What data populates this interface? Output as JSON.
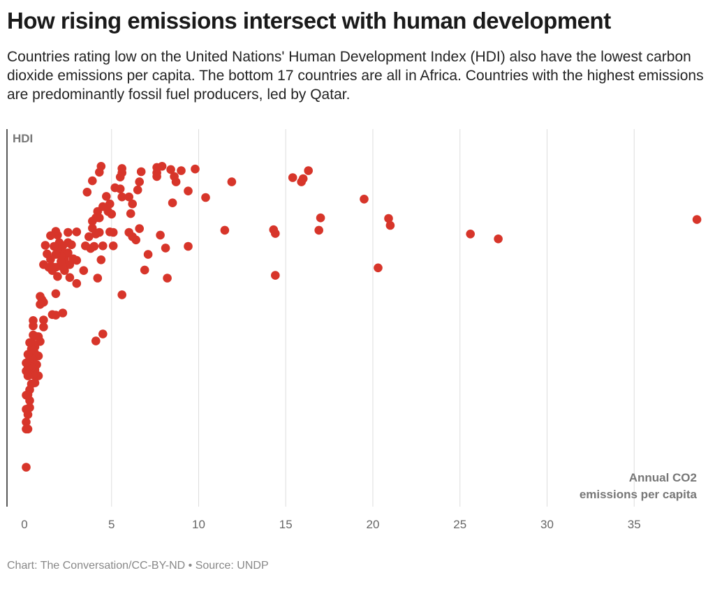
{
  "title": "How rising emissions intersect with human development",
  "subtitle": "Countries rating low on the United Nations' Human Development Index (HDI) also have the lowest carbon dioxide emissions per capita. The bottom 17 countries are all in Africa. Countries with the highest emissions are predominantly fossil fuel producers, led by Qatar.",
  "footer": "Chart: The Conversation/CC-BY-ND • Source: UNDP",
  "chart_data": {
    "type": "scatter",
    "ylabel": "HDI",
    "xlabel_lines": [
      "Annual CO2",
      "emissions per capita"
    ],
    "xticks": [
      "0",
      "5",
      "10",
      "15",
      "20",
      "25",
      "30",
      "35"
    ],
    "xlim": [
      0,
      39
    ],
    "ylim": [
      0.37,
      0.97
    ],
    "grid": "vertical",
    "color": "#d7352a",
    "points": [
      [
        38.6,
        0.855
      ],
      [
        27.2,
        0.819
      ],
      [
        25.6,
        0.828
      ],
      [
        20.3,
        0.765
      ],
      [
        21.0,
        0.844
      ],
      [
        20.9,
        0.857
      ],
      [
        19.5,
        0.893
      ],
      [
        17.0,
        0.858
      ],
      [
        16.9,
        0.835
      ],
      [
        16.3,
        0.946
      ],
      [
        16.0,
        0.931
      ],
      [
        15.9,
        0.925
      ],
      [
        15.4,
        0.933
      ],
      [
        14.4,
        0.829
      ],
      [
        14.3,
        0.836
      ],
      [
        14.4,
        0.751
      ],
      [
        11.5,
        0.835
      ],
      [
        11.9,
        0.925
      ],
      [
        10.4,
        0.896
      ],
      [
        9.8,
        0.949
      ],
      [
        9.4,
        0.908
      ],
      [
        9.4,
        0.805
      ],
      [
        9.0,
        0.946
      ],
      [
        8.7,
        0.925
      ],
      [
        8.6,
        0.935
      ],
      [
        8.5,
        0.886
      ],
      [
        8.4,
        0.948
      ],
      [
        8.2,
        0.746
      ],
      [
        8.1,
        0.802
      ],
      [
        7.9,
        0.954
      ],
      [
        7.8,
        0.826
      ],
      [
        7.6,
        0.942
      ],
      [
        7.6,
        0.952
      ],
      [
        7.6,
        0.935
      ],
      [
        7.1,
        0.79
      ],
      [
        6.9,
        0.761
      ],
      [
        6.7,
        0.944
      ],
      [
        6.6,
        0.925
      ],
      [
        6.6,
        0.838
      ],
      [
        6.5,
        0.91
      ],
      [
        6.4,
        0.817
      ],
      [
        6.2,
        0.823
      ],
      [
        6.2,
        0.884
      ],
      [
        6.0,
        0.831
      ],
      [
        6.1,
        0.866
      ],
      [
        6.0,
        0.897
      ],
      [
        5.6,
        0.95
      ],
      [
        5.6,
        0.942
      ],
      [
        5.5,
        0.934
      ],
      [
        5.5,
        0.912
      ],
      [
        5.6,
        0.897
      ],
      [
        5.6,
        0.715
      ],
      [
        5.2,
        0.914
      ],
      [
        5.1,
        0.831
      ],
      [
        5.1,
        0.806
      ],
      [
        5.0,
        0.865
      ],
      [
        4.9,
        0.884
      ],
      [
        4.9,
        0.832
      ],
      [
        4.8,
        0.87
      ],
      [
        4.7,
        0.898
      ],
      [
        4.5,
        0.806
      ],
      [
        4.5,
        0.879
      ],
      [
        4.4,
        0.954
      ],
      [
        4.3,
        0.943
      ],
      [
        4.3,
        0.858
      ],
      [
        4.2,
        0.87
      ],
      [
        4.0,
        0.805
      ],
      [
        4.1,
        0.828
      ],
      [
        4.1,
        0.858
      ],
      [
        4.2,
        0.746
      ],
      [
        4.3,
        0.831
      ],
      [
        4.4,
        0.78
      ],
      [
        4.5,
        0.642
      ],
      [
        4.1,
        0.629
      ],
      [
        3.9,
        0.927
      ],
      [
        3.8,
        0.801
      ],
      [
        3.9,
        0.839
      ],
      [
        3.9,
        0.852
      ],
      [
        3.7,
        0.823
      ],
      [
        3.6,
        0.906
      ],
      [
        3.5,
        0.806
      ],
      [
        3.4,
        0.76
      ],
      [
        3.0,
        0.779
      ],
      [
        3.0,
        0.832
      ],
      [
        3.0,
        0.736
      ],
      [
        2.8,
        0.782
      ],
      [
        2.7,
        0.808
      ],
      [
        2.6,
        0.747
      ],
      [
        2.6,
        0.771
      ],
      [
        2.5,
        0.831
      ],
      [
        2.5,
        0.812
      ],
      [
        2.5,
        0.793
      ],
      [
        2.4,
        0.79
      ],
      [
        2.3,
        0.76
      ],
      [
        2.3,
        0.78
      ],
      [
        2.2,
        0.806
      ],
      [
        2.2,
        0.766
      ],
      [
        2.2,
        0.681
      ],
      [
        2.1,
        0.777
      ],
      [
        2.1,
        0.801
      ],
      [
        2.1,
        0.787
      ],
      [
        2.0,
        0.812
      ],
      [
        1.9,
        0.749
      ],
      [
        1.9,
        0.826
      ],
      [
        1.9,
        0.8
      ],
      [
        1.8,
        0.833
      ],
      [
        1.8,
        0.79
      ],
      [
        1.8,
        0.766
      ],
      [
        1.8,
        0.717
      ],
      [
        1.8,
        0.677
      ],
      [
        1.7,
        0.805
      ],
      [
        1.6,
        0.76
      ],
      [
        1.6,
        0.678
      ],
      [
        1.6,
        0.767
      ],
      [
        1.5,
        0.825
      ],
      [
        1.5,
        0.781
      ],
      [
        1.4,
        0.766
      ],
      [
        1.3,
        0.791
      ],
      [
        1.2,
        0.807
      ],
      [
        1.1,
        0.771
      ],
      [
        1.1,
        0.701
      ],
      [
        1.1,
        0.668
      ],
      [
        1.1,
        0.655
      ],
      [
        1.0,
        0.706
      ],
      [
        0.9,
        0.712
      ],
      [
        0.9,
        0.697
      ],
      [
        0.9,
        0.628
      ],
      [
        0.8,
        0.564
      ],
      [
        0.8,
        0.601
      ],
      [
        0.8,
        0.637
      ],
      [
        0.7,
        0.585
      ],
      [
        0.6,
        0.638
      ],
      [
        0.6,
        0.618
      ],
      [
        0.6,
        0.606
      ],
      [
        0.6,
        0.575
      ],
      [
        0.6,
        0.551
      ],
      [
        0.5,
        0.667
      ],
      [
        0.5,
        0.657
      ],
      [
        0.5,
        0.64
      ],
      [
        0.5,
        0.623
      ],
      [
        0.5,
        0.592
      ],
      [
        0.5,
        0.566
      ],
      [
        0.4,
        0.614
      ],
      [
        0.4,
        0.597
      ],
      [
        0.4,
        0.58
      ],
      [
        0.4,
        0.549
      ],
      [
        0.3,
        0.626
      ],
      [
        0.3,
        0.598
      ],
      [
        0.3,
        0.582
      ],
      [
        0.3,
        0.566
      ],
      [
        0.3,
        0.538
      ],
      [
        0.3,
        0.518
      ],
      [
        0.3,
        0.505
      ],
      [
        0.2,
        0.604
      ],
      [
        0.2,
        0.578
      ],
      [
        0.2,
        0.564
      ],
      [
        0.2,
        0.529
      ],
      [
        0.2,
        0.492
      ],
      [
        0.2,
        0.465
      ],
      [
        0.1,
        0.588
      ],
      [
        0.1,
        0.573
      ],
      [
        0.1,
        0.528
      ],
      [
        0.1,
        0.502
      ],
      [
        0.1,
        0.478
      ],
      [
        0.1,
        0.465
      ],
      [
        0.1,
        0.394
      ]
    ]
  }
}
